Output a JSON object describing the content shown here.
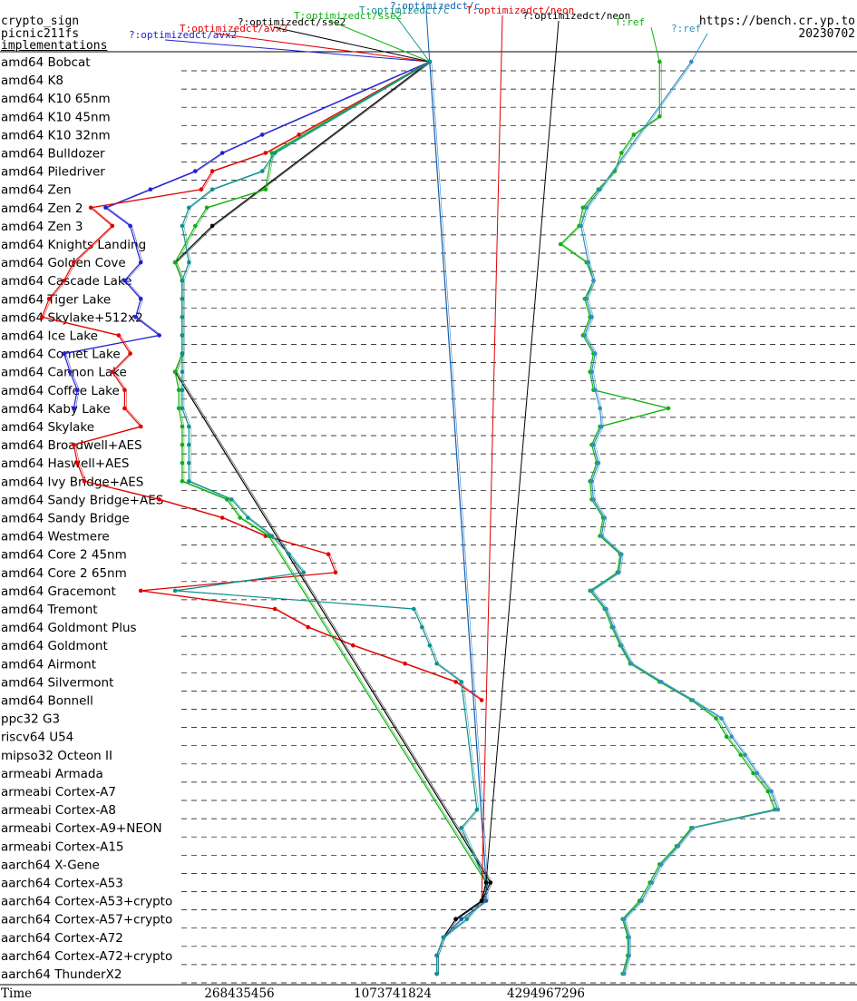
{
  "header": {
    "left_line1": "crypto_sign",
    "left_line2": "picnic211fs",
    "left_line3": "implementations",
    "right_line1": "https://bench.cr.yp.to",
    "right_line2": "20230702"
  },
  "chart_data": {
    "type": "line",
    "title": "",
    "xlabel": "Time",
    "x_scale": "log",
    "x_ticks": [
      268435456,
      1073741824,
      4294967296
    ],
    "x_tick_labels": [
      "268435456",
      "1073741824",
      "4294967296"
    ],
    "categories": [
      "amd64 Bobcat",
      "amd64 K8",
      "amd64 K10 65nm",
      "amd64 K10 45nm",
      "amd64 K10 32nm",
      "amd64 Bulldozer",
      "amd64 Piledriver",
      "amd64 Zen",
      "amd64 Zen 2",
      "amd64 Zen 3",
      "amd64 Knights Landing",
      "amd64 Golden Cove",
      "amd64 Cascade Lake",
      "amd64 Tiger Lake",
      "amd64 Skylake+512x2",
      "amd64 Ice Lake",
      "amd64 Comet Lake",
      "amd64 Cannon Lake",
      "amd64 Coffee Lake",
      "amd64 Kaby Lake",
      "amd64 Skylake",
      "amd64 Broadwell+AES",
      "amd64 Haswell+AES",
      "amd64 Ivy Bridge+AES",
      "amd64 Sandy Bridge+AES",
      "amd64 Sandy Bridge",
      "amd64 Westmere",
      "amd64 Core 2 45nm",
      "amd64 Core 2 65nm",
      "amd64 Gracemont",
      "amd64 Tremont",
      "amd64 Goldmont Plus",
      "amd64 Goldmont",
      "amd64 Airmont",
      "amd64 Silvermont",
      "amd64 Bonnell",
      "ppc32 G3",
      "riscv64 U54",
      "mipso32 Octeon II",
      "armeabi Armada",
      "armeabi Cortex-A7",
      "armeabi Cortex-A8",
      "armeabi Cortex-A9+NEON",
      "armeabi Cortex-A15",
      "aarch64 X-Gene",
      "aarch64 Cortex-A53",
      "aarch64 Cortex-A53+crypto",
      "aarch64 Cortex-A57+crypto",
      "aarch64 Cortex-A72",
      "aarch64 Cortex-A72+crypto",
      "aarch64 ThunderX2"
    ],
    "series": [
      {
        "name": "?:optimizedct/avx2",
        "color": "#2020d0",
        "values": [
          1500000000.0,
          null,
          null,
          null,
          330000000.0,
          230000000.0,
          180000000.0,
          120000000.0,
          80000000.0,
          100000000.0,
          null,
          110000000.0,
          95000000.0,
          110000000.0,
          105000000.0,
          130000000.0,
          55000000.0,
          58000000.0,
          62000000.0,
          60000000.0,
          null,
          null,
          null,
          null,
          null,
          null,
          null,
          null,
          null,
          null,
          null,
          null,
          null,
          null,
          null,
          null,
          null,
          null,
          null,
          null,
          null,
          null,
          null,
          null,
          null,
          null,
          null,
          null,
          null,
          null,
          null
        ]
      },
      {
        "name": "T:optimizedct/avx2",
        "color": "#e00000",
        "values": [
          1500000000.0,
          null,
          null,
          null,
          460000000.0,
          340000000.0,
          210000000.0,
          190000000.0,
          70000000.0,
          85000000.0,
          null,
          60000000.0,
          55000000.0,
          48000000.0,
          45000000.0,
          90000000.0,
          100000000.0,
          85000000.0,
          95000000.0,
          95000000.0,
          110000000.0,
          60000000.0,
          62000000.0,
          66000000.0,
          130000000.0,
          230000000.0,
          340000000.0,
          600000000.0,
          640000000.0,
          110000000.0,
          370000000.0,
          500000000.0,
          750000000.0,
          1200000000.0,
          1900000000.0,
          2400000000.0,
          null,
          null,
          null,
          null,
          null,
          null,
          null,
          null,
          null,
          null,
          null,
          null,
          null,
          null,
          null
        ]
      },
      {
        "name": "?:optimizedct/sse2",
        "color": "#000000",
        "values": [
          1500000000.0,
          null,
          null,
          null,
          null,
          null,
          null,
          null,
          null,
          210000000.0,
          null,
          150000000.0,
          160000000.0,
          160000000.0,
          160000000.0,
          160000000.0,
          160000000.0,
          150000000.0,
          null,
          null,
          null,
          null,
          null,
          null,
          null,
          null,
          null,
          null,
          null,
          null,
          null,
          null,
          null,
          null,
          null,
          null,
          null,
          null,
          null,
          null,
          null,
          null,
          null,
          null,
          null,
          2600000000.0,
          2400000000.0,
          1900000000.0,
          1700000000.0,
          1600000000.0,
          1600000000.0
        ]
      },
      {
        "name": "T:optimizedct/sse2",
        "color": "#10b010",
        "values": [
          1500000000.0,
          null,
          null,
          null,
          null,
          360000000.0,
          null,
          340000000.0,
          200000000.0,
          180000000.0,
          null,
          150000000.0,
          160000000.0,
          160000000.0,
          160000000.0,
          160000000.0,
          160000000.0,
          150000000.0,
          155000000.0,
          155000000.0,
          160000000.0,
          160000000.0,
          160000000.0,
          160000000.0,
          240000000.0,
          270000000.0,
          350000000.0,
          null,
          null,
          null,
          null,
          null,
          null,
          null,
          null,
          null,
          null,
          null,
          null,
          null,
          null,
          null,
          null,
          null,
          null,
          2500000000.0,
          2400000000.0,
          null,
          null,
          null,
          null
        ]
      },
      {
        "name": "?:optimizedct/c",
        "color": "#1060b0",
        "values": [
          1500000000.0,
          null,
          null,
          null,
          null,
          null,
          null,
          null,
          null,
          null,
          null,
          null,
          null,
          null,
          null,
          null,
          null,
          null,
          null,
          null,
          null,
          null,
          null,
          null,
          null,
          null,
          null,
          null,
          null,
          null,
          null,
          null,
          null,
          null,
          null,
          null,
          null,
          null,
          null,
          null,
          null,
          null,
          null,
          null,
          null,
          2500000000.0,
          2500000000.0,
          2000000000.0,
          1700000000.0,
          1600000000.0,
          1600000000.0
        ]
      },
      {
        "name": "T:optimizedct/c",
        "color": "#109090",
        "values": [
          1500000000.0,
          null,
          null,
          null,
          null,
          370000000.0,
          330000000.0,
          210000000.0,
          170000000.0,
          160000000.0,
          null,
          170000000.0,
          160000000.0,
          160000000.0,
          160000000.0,
          160000000.0,
          160000000.0,
          160000000.0,
          160000000.0,
          160000000.0,
          170000000.0,
          170000000.0,
          170000000.0,
          170000000.0,
          250000000.0,
          290000000.0,
          360000000.0,
          420000000.0,
          480000000.0,
          150000000.0,
          1300000000.0,
          1400000000.0,
          1500000000.0,
          1600000000.0,
          2000000000.0,
          null,
          null,
          null,
          null,
          null,
          null,
          2300000000.0,
          2000000000.0,
          null,
          null,
          2500000000.0,
          2400000000.0,
          2100000000.0,
          1700000000.0,
          1600000000.0,
          1600000000.0
        ]
      },
      {
        "name": "T:optimizedct/neon",
        "color": "#e00000",
        "values": [
          null,
          null,
          null,
          null,
          null,
          null,
          null,
          null,
          null,
          null,
          null,
          null,
          null,
          null,
          null,
          null,
          null,
          null,
          null,
          null,
          null,
          null,
          null,
          null,
          null,
          null,
          null,
          null,
          null,
          null,
          null,
          null,
          null,
          null,
          null,
          null,
          null,
          null,
          null,
          null,
          null,
          null,
          null,
          null,
          null,
          null,
          2400000000.0,
          null,
          null,
          null,
          null
        ]
      },
      {
        "name": "?:optimizedct/neon",
        "color": "#000000",
        "values": [
          null,
          null,
          null,
          null,
          null,
          null,
          null,
          null,
          null,
          null,
          null,
          null,
          null,
          null,
          null,
          null,
          null,
          null,
          null,
          null,
          null,
          null,
          null,
          null,
          null,
          null,
          null,
          null,
          null,
          null,
          null,
          null,
          null,
          null,
          null,
          null,
          null,
          null,
          null,
          null,
          null,
          null,
          null,
          null,
          null,
          2500000000.0,
          2400000000.0,
          1900000000.0,
          null,
          null,
          null
        ]
      },
      {
        "name": "T:ref",
        "color": "#10b010",
        "values": [
          12000000000.0,
          null,
          null,
          12000000000.0,
          9500000000.0,
          8500000000.0,
          8000000000.0,
          6900000000.0,
          6000000000.0,
          5800000000.0,
          4900000000.0,
          6200000000.0,
          6600000000.0,
          6100000000.0,
          6400000000.0,
          6000000000.0,
          6600000000.0,
          6400000000.0,
          6600000000.0,
          13000000000.0,
          7000000000.0,
          6500000000.0,
          6800000000.0,
          6400000000.0,
          6500000000.0,
          7200000000.0,
          7000000000.0,
          8400000000.0,
          8200000000.0,
          6400000000.0,
          7300000000.0,
          7800000000.0,
          8400000000.0,
          9200000000.0,
          12000000000.0,
          16000000000.0,
          20000000000.0,
          22000000000.0,
          25000000000.0,
          28000000000.0,
          32000000000.0,
          34000000000.0,
          16000000000.0,
          14000000000.0,
          12000000000.0,
          11000000000.0,
          10000000000.0,
          8600000000.0,
          9000000000.0,
          9000000000.0,
          8600000000.0
        ]
      },
      {
        "name": "?:ref",
        "color": "#3090c0",
        "values": [
          16000000000.0,
          null,
          null,
          null,
          null,
          null,
          null,
          7000000000.0,
          6200000000.0,
          5900000000.0,
          null,
          6300000000.0,
          6600000000.0,
          6200000000.0,
          6500000000.0,
          6100000000.0,
          6700000000.0,
          6500000000.0,
          6700000000.0,
          7000000000.0,
          7100000000.0,
          6600000000.0,
          6900000000.0,
          6500000000.0,
          6600000000.0,
          7300000000.0,
          7100000000.0,
          8500000000.0,
          8300000000.0,
          6500000000.0,
          7400000000.0,
          7900000000.0,
          8500000000.0,
          9300000000.0,
          12200000000.0,
          16200000000.0,
          21000000000.0,
          23000000000.0,
          26000000000.0,
          29000000000.0,
          33000000000.0,
          35000000000.0,
          16200000000.0,
          14200000000.0,
          12200000000.0,
          11200000000.0,
          10200000000.0,
          8700000000.0,
          9100000000.0,
          9100000000.0,
          8700000000.0
        ]
      }
    ]
  }
}
